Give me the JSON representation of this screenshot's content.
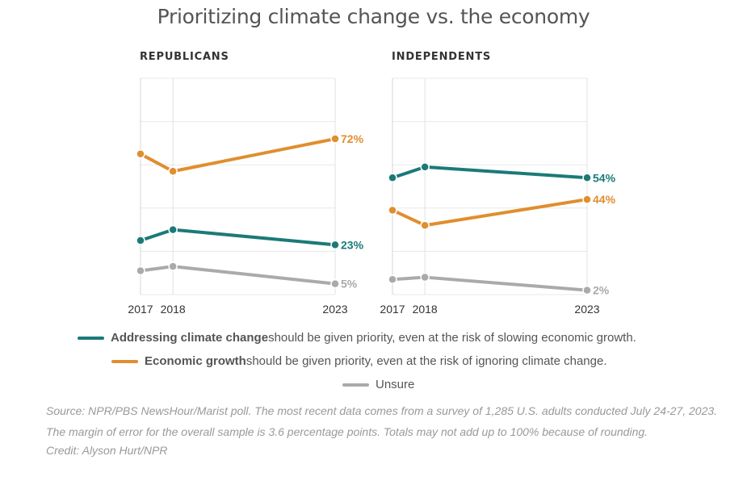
{
  "title": "Prioritizing climate change vs. the economy",
  "colors": {
    "climate": "#1b7a78",
    "economy": "#e08e2e",
    "unsure": "#aaaaaa"
  },
  "legend": [
    {
      "key": "climate",
      "bold": "Addressing climate change",
      "text": " should be given priority, even at the risk of slowing economic growth."
    },
    {
      "key": "economy",
      "bold": "Economic growth",
      "text": " should be given priority, even at the risk of ignoring climate change."
    },
    {
      "key": "unsure",
      "bold": "",
      "text": "Unsure"
    }
  ],
  "source": "Source: NPR/PBS NewsHour/Marist poll. The most recent data comes from a survey of 1,285 U.S. adults conducted July 24-27, 2023. The margin of error for the overall sample is 3.6 percentage points. Totals may not add up to 100% because of rounding.",
  "credit": "Credit: Alyson Hurt/NPR",
  "chart_data": [
    {
      "type": "line",
      "title": "REPUBLICANS",
      "x": [
        2017,
        2018,
        2023
      ],
      "xticks": [
        "2017",
        "2018",
        "2023"
      ],
      "ylim": [
        0,
        100
      ],
      "grid": true,
      "series": [
        {
          "key": "economy",
          "values": [
            65,
            57,
            72
          ],
          "end_label": "72%"
        },
        {
          "key": "climate",
          "values": [
            25,
            30,
            23
          ],
          "end_label": "23%"
        },
        {
          "key": "unsure",
          "values": [
            11,
            13,
            5
          ],
          "end_label": "5%"
        }
      ]
    },
    {
      "type": "line",
      "title": "INDEPENDENTS",
      "x": [
        2017,
        2018,
        2023
      ],
      "xticks": [
        "2017",
        "2018",
        "2023"
      ],
      "ylim": [
        0,
        100
      ],
      "grid": true,
      "series": [
        {
          "key": "climate",
          "values": [
            54,
            59,
            54
          ],
          "end_label": "54%"
        },
        {
          "key": "economy",
          "values": [
            39,
            32,
            44
          ],
          "end_label": "44%"
        },
        {
          "key": "unsure",
          "values": [
            7,
            8,
            2
          ],
          "end_label": "2%"
        }
      ]
    }
  ]
}
